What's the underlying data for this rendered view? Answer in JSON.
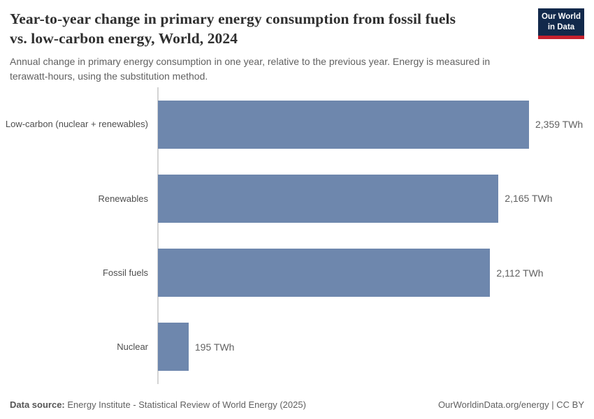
{
  "header": {
    "title": "Year-to-year change in primary energy consumption from fossil fuels vs. low-carbon energy, World, 2024",
    "title_lines": [
      "Year-to-year change in primary energy consumption from fossil fuels",
      "vs. low-carbon energy, World, 2024"
    ],
    "subtitle": "Annual change in primary energy consumption in one year, relative to the previous year. Energy is measured in terawatt-hours, using the substitution method.",
    "logo": {
      "line1": "Our World",
      "line2": "in Data"
    }
  },
  "chart_data": {
    "type": "bar",
    "orientation": "horizontal",
    "title": "Year-to-year change in primary energy consumption from fossil fuels vs. low-carbon energy, World, 2024",
    "categories": [
      "Low-carbon (nuclear + renewables)",
      "Renewables",
      "Fossil fuels",
      "Nuclear"
    ],
    "values": [
      2359,
      2165,
      2112,
      195
    ],
    "value_labels": [
      "2,359 TWh",
      "2,165 TWh",
      "2,112 TWh",
      "195 TWh"
    ],
    "unit": "TWh",
    "xlim": [
      0,
      2359
    ],
    "grid": false,
    "legend": "none",
    "bar_color": "#6e87ad"
  },
  "footer": {
    "source_label": "Data source:",
    "source_text": "Energy Institute - Statistical Review of World Energy (2025)",
    "credit": "OurWorldinData.org/energy | CC BY"
  },
  "colors": {
    "bar": "#6e87ad",
    "axis_line": "#d4d4d4",
    "logo_background": "#12294b",
    "logo_red": "#c5212e",
    "title_text": "#2f2f2f",
    "body_text": "#616161"
  }
}
